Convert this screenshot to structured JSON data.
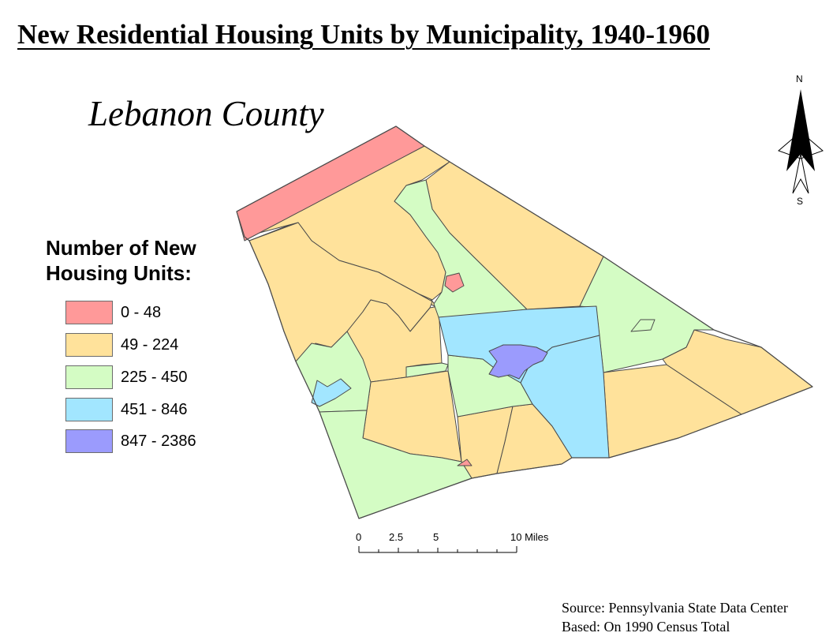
{
  "title": "New Residential Housing Units by Municipality, 1940-1960",
  "subtitle": "Lebanon County",
  "legend": {
    "title_line1": "Number of New",
    "title_line2": "Housing Units:",
    "items": [
      {
        "label": "0 - 48",
        "color": "#ff9999"
      },
      {
        "label": "49 - 224",
        "color": "#ffe29b"
      },
      {
        "label": "225 - 450",
        "color": "#d4fcc4"
      },
      {
        "label": "451 - 846",
        "color": "#a2e6ff"
      },
      {
        "label": "847 - 2386",
        "color": "#9b9bfd"
      }
    ]
  },
  "north_arrow": {
    "north": "N",
    "south": "S"
  },
  "scale_bar": {
    "ticks": [
      {
        "value": 0,
        "label": "0"
      },
      {
        "value": 2.5,
        "label": "2.5"
      },
      {
        "value": 5,
        "label": "5"
      },
      {
        "value": 10,
        "label": "10 Miles"
      }
    ]
  },
  "source": {
    "line1": "Source: Pennsylvania State Data Center",
    "line2": "Based: On 1990 Census Total"
  },
  "colors": {
    "boundary": "#4a4a4a"
  }
}
